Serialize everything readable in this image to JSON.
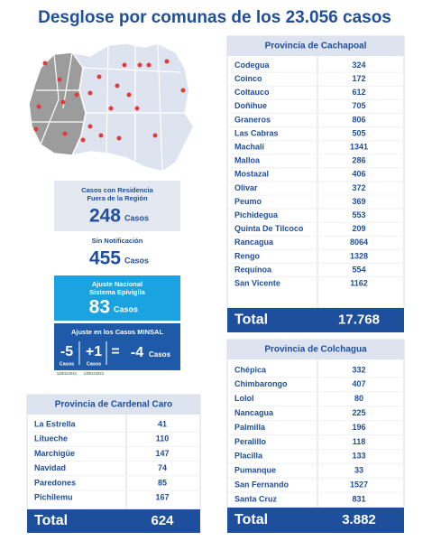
{
  "title": "Desglose por comunas de los 23.056 casos",
  "summary": {
    "outside_region": {
      "label_lines": [
        "Casos con Residencia",
        "Fuera de la Región"
      ],
      "value": "248",
      "unit": "Casos"
    },
    "no_notification": {
      "label": "Sin Notificación",
      "value": "455",
      "unit": "Casos"
    },
    "national_adjustment": {
      "label_lines": [
        "Ajuste Nacional",
        "Sistema Epivigila"
      ],
      "value": "83",
      "unit": "Casos"
    },
    "minsal_adjustment": {
      "title": "Ajuste en los Casos MINSAL",
      "items": [
        {
          "value": "-5",
          "unit": "Casos",
          "date": "12/01/2021"
        },
        {
          "value": "+1",
          "unit": "Casos",
          "date": "13/01/2021"
        }
      ],
      "operator": "=",
      "result": {
        "value": "-4",
        "unit": "Casos"
      }
    }
  },
  "tables": {
    "cachapoal": {
      "title": "Provincia de Cachapoal",
      "rows": [
        [
          "Codegua",
          "324"
        ],
        [
          "Coinco",
          "172"
        ],
        [
          "Coltauco",
          "612"
        ],
        [
          "Doñihue",
          "705"
        ],
        [
          "Graneros",
          "806"
        ],
        [
          "Las Cabras",
          "505"
        ],
        [
          "Machalí",
          "1341"
        ],
        [
          "Malloa",
          "286"
        ],
        [
          "Mostazal",
          "406"
        ],
        [
          "Olivar",
          "372"
        ],
        [
          "Peumo",
          "369"
        ],
        [
          "Pichidegua",
          "553"
        ],
        [
          "Quinta De Tilcoco",
          "209"
        ],
        [
          "Rancagua",
          "8064"
        ],
        [
          "Rengo",
          "1328"
        ],
        [
          "Requínoa",
          "554"
        ],
        [
          "San Vicente",
          "1162"
        ]
      ],
      "total_label": "Total",
      "total": "17.768"
    },
    "colchagua": {
      "title": "Provincia de Colchagua",
      "rows": [
        [
          "Chépica",
          "332"
        ],
        [
          "Chimbarongo",
          "407"
        ],
        [
          "Lolol",
          "80"
        ],
        [
          "Nancagua",
          "225"
        ],
        [
          "Palmilla",
          "196"
        ],
        [
          "Peralillo",
          "118"
        ],
        [
          "Placilla",
          "133"
        ],
        [
          "Pumanque",
          "33"
        ],
        [
          "San Fernando",
          "1527"
        ],
        [
          "Santa Cruz",
          "831"
        ]
      ],
      "total_label": "Total",
      "total": "3.882"
    },
    "cardenal_caro": {
      "title": "Provincia de Cardenal Caro",
      "rows": [
        [
          "La Estrella",
          "41"
        ],
        [
          "Litueche",
          "110"
        ],
        [
          "Marchigüe",
          "147"
        ],
        [
          "Navidad",
          "74"
        ],
        [
          "Paredones",
          "85"
        ],
        [
          "Pichilemu",
          "167"
        ]
      ],
      "total_label": "Total",
      "total": "624"
    }
  }
}
